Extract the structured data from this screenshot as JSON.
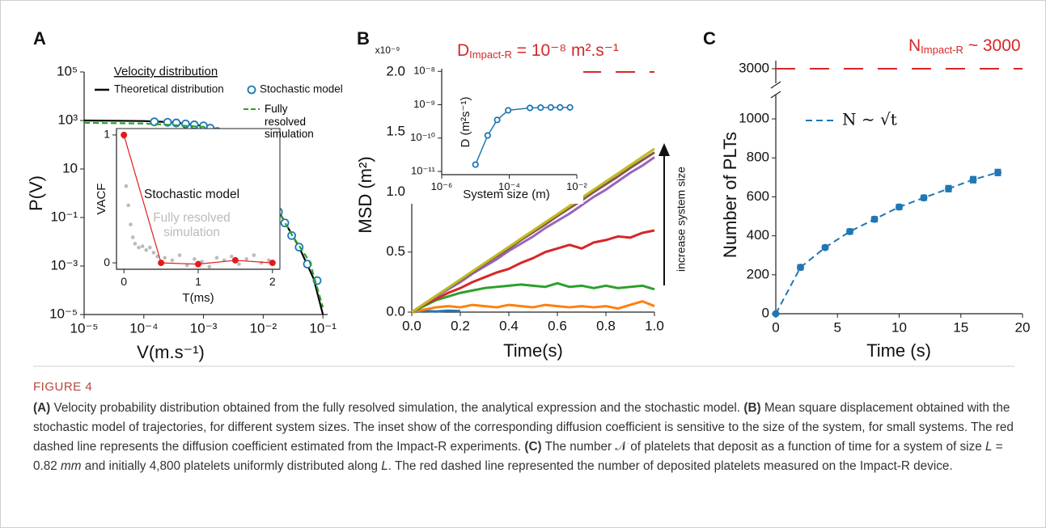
{
  "chart_data": [
    {
      "type": "line",
      "panel_label": "A",
      "x_label": "V(m.s⁻¹)",
      "y_label": "P(V)",
      "x_log": true,
      "y_log": true,
      "xlim": [
        1e-05,
        0.12
      ],
      "ylim": [
        1e-05,
        100000
      ],
      "xticks": [
        {
          "value": 1e-05,
          "label": "10⁻⁵"
        },
        {
          "value": 0.0001,
          "label": "10⁻⁴"
        },
        {
          "value": 0.001,
          "label": "10⁻³"
        },
        {
          "value": 0.01,
          "label": "10⁻²"
        },
        {
          "value": 0.1,
          "label": "10⁻¹"
        }
      ],
      "yticks": [
        {
          "value": 1e-05,
          "label": "10⁻⁵"
        },
        {
          "value": 0.001,
          "label": "10⁻³"
        },
        {
          "value": 0.1,
          "label": "10⁻¹"
        },
        10,
        {
          "value": 1000,
          "label": "10³"
        },
        {
          "value": 100000,
          "label": "10⁵"
        }
      ],
      "legend_title": "Velocity distribution",
      "series": [
        {
          "name": "Theoretical distribution",
          "color": "#000000",
          "style": "line",
          "x": [
            1e-05,
            0.0001,
            0.0003,
            0.001,
            0.002,
            0.003,
            0.005,
            0.01,
            0.02,
            0.04,
            0.07,
            0.1
          ],
          "values": [
            1000,
            950,
            850,
            600,
            300,
            120,
            27,
            2,
            0.12,
            0.006,
            0.0003,
            1e-05
          ]
        },
        {
          "name": "Stochastic model",
          "color": "#1f77b4",
          "style": "markers",
          "hollow": true,
          "x": [
            0.00015,
            0.00025,
            0.00035,
            0.0005,
            0.0007,
            0.001,
            0.0013,
            0.0017,
            0.0022,
            0.0028,
            0.0035,
            0.0043,
            0.0052,
            0.0062,
            0.0075,
            0.009,
            0.011,
            0.014,
            0.018,
            0.023,
            0.03,
            0.04,
            0.055,
            0.08
          ],
          "values": [
            880,
            840,
            790,
            720,
            660,
            600,
            480,
            350,
            230,
            140,
            80,
            42,
            22,
            12,
            6,
            3.2,
            1.3,
            0.5,
            0.17,
            0.06,
            0.018,
            0.006,
            0.0012,
            0.00025
          ]
        },
        {
          "name": "Fully resolved simulation",
          "color": "#2ca02c",
          "style": "dashed",
          "x": [
            1e-05,
            0.0001,
            0.001,
            0.003,
            0.01,
            0.03,
            0.06,
            0.1
          ],
          "values": [
            800,
            750,
            550,
            130,
            2.2,
            0.02,
            0.0015,
            2e-05
          ]
        }
      ]
    },
    {
      "type": "line",
      "x_label": "T(ms)",
      "y_label": "VACF",
      "xlim": [
        -0.1,
        2.1
      ],
      "ylim": [
        -0.05,
        1.05
      ],
      "xticks": [
        0,
        1,
        2
      ],
      "yticks": [
        0,
        1
      ],
      "series": [
        {
          "name": "Fully resolved simulation",
          "color": "#bbbbbb",
          "style": "dots",
          "x": [
            0,
            0.03,
            0.06,
            0.09,
            0.12,
            0.15,
            0.2,
            0.25,
            0.3,
            0.35,
            0.4,
            0.45,
            0.55,
            0.65,
            0.75,
            0.85,
            0.95,
            1.05,
            1.15,
            1.25,
            1.35,
            1.45,
            1.55,
            1.65,
            1.75,
            1.85,
            1.95
          ],
          "values": [
            0.98,
            0.6,
            0.45,
            0.3,
            0.2,
            0.15,
            0.12,
            0.13,
            0.1,
            0.12,
            0.08,
            0.05,
            0.04,
            0.02,
            0.06,
            -0.02,
            0.03,
            0.01,
            -0.03,
            0.04,
            0.02,
            0.05,
            -0.01,
            0.03,
            0.06,
            0,
            0.02
          ]
        },
        {
          "name": "Stochastic model",
          "color": "#e31a1c",
          "style": "line+markers",
          "x": [
            0,
            0.5,
            1,
            1.5,
            2
          ],
          "values": [
            1,
            0,
            -0.01,
            0.02,
            0
          ]
        }
      ]
    },
    {
      "type": "line",
      "panel_label": "B",
      "x_label": "Time(s)",
      "y_label": "MSD (m²)",
      "y_multiplier": "x10⁻⁹",
      "xlim": [
        0,
        1
      ],
      "ylim": [
        0,
        2
      ],
      "xticks": [
        {
          "value": 0,
          "label": "0.0"
        },
        0.2,
        0.4,
        0.6,
        0.8,
        {
          "value": 1,
          "label": "1.0"
        }
      ],
      "yticks": [
        {
          "value": 0,
          "label": "0.0"
        },
        0.5,
        {
          "value": 1,
          "label": "1.0"
        },
        1.5,
        {
          "value": 2,
          "label": "2.0"
        }
      ],
      "x": [
        0,
        0.05,
        0.1,
        0.15,
        0.2,
        0.25,
        0.3,
        0.35,
        0.4,
        0.45,
        0.5,
        0.55,
        0.6,
        0.65,
        0.7,
        0.75,
        0.8,
        0.85,
        0.9,
        0.95,
        1
      ],
      "series": [
        {
          "color": "#1f77b4",
          "style": "line",
          "values": [
            0,
            0.01,
            0.005,
            0.012,
            0.008,
            null,
            null,
            null,
            null,
            null,
            null,
            null,
            null,
            null,
            null,
            null,
            null,
            null,
            null,
            null,
            null
          ]
        },
        {
          "color": "#ff7f0e",
          "style": "line",
          "values": [
            0,
            0.02,
            0.04,
            0.05,
            0.04,
            0.06,
            0.05,
            0.04,
            0.06,
            0.05,
            0.04,
            0.06,
            0.05,
            0.04,
            0.05,
            0.04,
            0.05,
            0.03,
            0.06,
            0.09,
            0.05
          ]
        },
        {
          "color": "#2ca02c",
          "style": "line",
          "values": [
            0,
            0.05,
            0.1,
            0.13,
            0.16,
            0.18,
            0.2,
            0.21,
            0.22,
            0.23,
            0.22,
            0.21,
            0.24,
            0.21,
            0.22,
            0.2,
            0.22,
            0.2,
            0.21,
            0.22,
            0.19
          ]
        },
        {
          "color": "#d62728",
          "style": "line",
          "values": [
            0,
            0.06,
            0.11,
            0.16,
            0.2,
            0.25,
            0.29,
            0.33,
            0.36,
            0.41,
            0.45,
            0.5,
            0.53,
            0.56,
            0.53,
            0.58,
            0.6,
            0.63,
            0.62,
            0.66,
            0.68
          ]
        },
        {
          "color": "#9467bd",
          "style": "line",
          "values": [
            0,
            0.065,
            0.13,
            0.19,
            0.25,
            0.32,
            0.38,
            0.44,
            0.51,
            0.57,
            0.63,
            0.7,
            0.76,
            0.82,
            0.89,
            0.96,
            1.02,
            1.09,
            1.16,
            1.22,
            1.29
          ]
        },
        {
          "color": "#8c564b",
          "style": "line",
          "values": [
            0,
            0.067,
            0.134,
            0.2,
            0.265,
            0.33,
            0.4,
            0.465,
            0.53,
            0.6,
            0.665,
            0.73,
            0.8,
            0.865,
            0.93,
            1,
            1.065,
            1.13,
            1.2,
            1.265,
            1.33
          ]
        },
        {
          "color": "#bcbd22",
          "style": "line",
          "values": [
            0,
            0.068,
            0.136,
            0.204,
            0.272,
            0.34,
            0.408,
            0.476,
            0.544,
            0.612,
            0.68,
            0.748,
            0.816,
            0.884,
            0.952,
            1.02,
            1.088,
            1.156,
            1.224,
            1.292,
            1.36
          ]
        }
      ],
      "reference_line": {
        "value": 2,
        "color": "#d62728"
      },
      "annotation": {
        "main": "D",
        "sub": "Impact-R",
        "rest": " = 10⁻⁸ m².s⁻¹"
      },
      "arrow_label": "increase system size"
    },
    {
      "type": "line",
      "x_label": "System size (m)",
      "y_label": "D (m²s⁻¹)",
      "x_log": true,
      "y_log": true,
      "xlim": [
        1e-06,
        0.01
      ],
      "ylim": [
        8e-12,
        1.2e-08
      ],
      "xticks": [
        {
          "value": 1e-06,
          "label": "10⁻⁶"
        },
        {
          "value": 0.0001,
          "label": "10⁻⁴"
        },
        {
          "value": 0.01,
          "label": "10⁻²"
        }
      ],
      "yticks": [
        {
          "value": 1e-11,
          "label": "10⁻¹¹"
        },
        {
          "value": 1e-10,
          "label": "10⁻¹⁰"
        },
        {
          "value": 1e-09,
          "label": "10⁻⁹"
        },
        {
          "value": 1e-08,
          "label": "10⁻⁸"
        }
      ],
      "series": [
        {
          "color": "#1f77b4",
          "style": "line+markers",
          "hollow": true,
          "x": [
            1e-05,
            2.3e-05,
            4.4e-05,
            9.3e-05,
            0.00041,
            0.00085,
            0.0017,
            0.0032,
            0.0063
          ],
          "values": [
            1.6e-11,
            1.2e-10,
            3.5e-10,
            6.8e-10,
            8e-10,
            8.2e-10,
            8.3e-10,
            8.3e-10,
            8.3e-10
          ]
        }
      ]
    },
    {
      "type": "line",
      "panel_label": "C",
      "x_label": "Time (s)",
      "y_label": "Number of PLTs",
      "xlim": [
        0,
        20
      ],
      "ylim": [
        0,
        1050
      ],
      "xticks": [
        0,
        5,
        10,
        15,
        20
      ],
      "yticks": [
        0,
        200,
        400,
        600,
        800,
        1000
      ],
      "upper_ylim": [
        2960,
        3040
      ],
      "upper_yticks": [
        3000
      ],
      "reference_line": {
        "value": 3000,
        "color": "#d62728"
      },
      "annotation": {
        "main": "N",
        "sub": "Impact-R",
        "rest": " ~ 3000"
      },
      "x": [
        0,
        2,
        4,
        6,
        8,
        10,
        12,
        14,
        16,
        18
      ],
      "series": [
        {
          "name": "N ∼ √t",
          "color": "#1f77b4",
          "style": "dashed+markers",
          "values": [
            0,
            238,
            340,
            422,
            485,
            548,
            595,
            642,
            688,
            725
          ],
          "errors": [
            0,
            12,
            10,
            12,
            12,
            12,
            12,
            15,
            15,
            15
          ]
        }
      ]
    }
  ],
  "caption": {
    "label": "FIGURE 4",
    "segments": [
      "(A)",
      " Velocity probability distribution obtained from the fully resolved simulation, the analytical expression and the stochastic model. ",
      "(B)",
      " Mean square displacement obtained with the stochastic model of trajectories, for different system sizes. The inset show of the corresponding diffusion coefficient is sensitive to the size of the system, for small systems. The red dashed line represents the diffusion coefficient estimated from the Impact-R experiments. ",
      "(C)",
      " The number ",
      "𝒩",
      " of platelets that deposit as a function of time for a system of size ",
      "L",
      " = 0.82 ",
      "mm",
      " and initially 4,800 platelets uniformly distributed along ",
      "L",
      ". The red dashed line represented the number of deposited platelets measured on the Impact-R device."
    ]
  }
}
